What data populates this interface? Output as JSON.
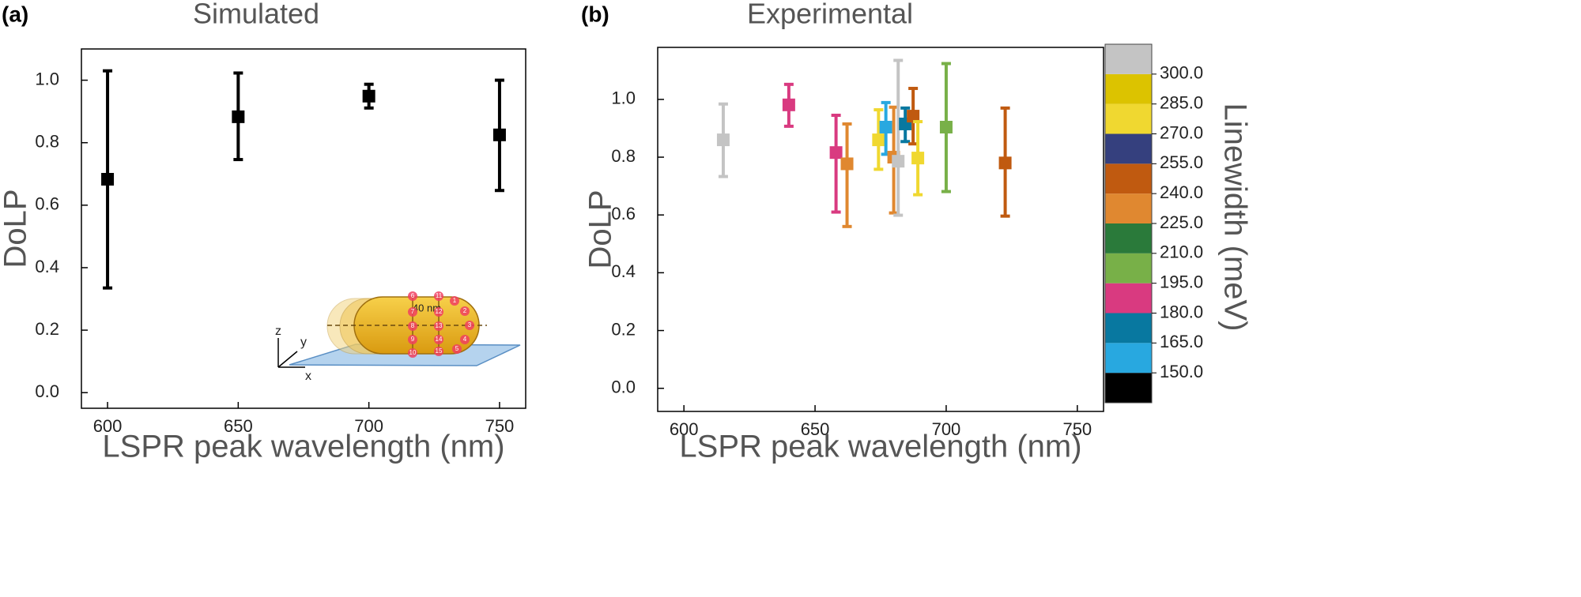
{
  "chart_data": [
    {
      "type": "scatter",
      "panel_label": "(a)",
      "title": "Simulated",
      "xlabel": "LSPR peak wavelength (nm)",
      "ylabel": "DoLP",
      "xlim": [
        590,
        760
      ],
      "ylim": [
        -0.05,
        1.1
      ],
      "xticks": [
        600,
        650,
        700,
        750
      ],
      "yticks": [
        {
          "value": 0,
          "label": "0.0"
        },
        {
          "value": 0.2,
          "label": "0.2"
        },
        {
          "value": 0.4,
          "label": "0.4"
        },
        {
          "value": 0.6,
          "label": "0.6"
        },
        {
          "value": 0.8,
          "label": "0.8"
        },
        {
          "value": 1,
          "label": "1.0"
        }
      ],
      "x": [
        600,
        650,
        700,
        750
      ],
      "values": [
        0.683,
        0.883,
        0.949,
        0.825
      ],
      "low": [
        0.335,
        0.746,
        0.911,
        0.647
      ],
      "high": [
        1.03,
        1.023,
        0.987,
        1.0
      ],
      "color": "#000000",
      "inset": {
        "dimension": "40 nm",
        "axes": [
          "z",
          "y",
          "x"
        ],
        "point_labels": [
          "1",
          "2",
          "3",
          "4",
          "5",
          "6",
          "7",
          "8",
          "9",
          "10",
          "11",
          "12",
          "13",
          "14",
          "15"
        ]
      }
    },
    {
      "type": "scatter",
      "panel_label": "(b)",
      "title": "Experimental",
      "xlabel": "LSPR peak wavelength (nm)",
      "ylabel": "DoLP",
      "xlim": [
        590,
        760
      ],
      "ylim": [
        -0.08,
        1.18
      ],
      "xticks": [
        600,
        650,
        700,
        750
      ],
      "yticks": [
        {
          "value": 0,
          "label": "0.0"
        },
        {
          "value": 0.2,
          "label": "0.2"
        },
        {
          "value": 0.4,
          "label": "0.4"
        },
        {
          "value": 0.6,
          "label": "0.6"
        },
        {
          "value": 0.8,
          "label": "0.8"
        },
        {
          "value": 1,
          "label": "1.0"
        }
      ],
      "x": [
        615,
        640,
        658,
        662.2,
        674.2,
        677,
        680,
        681.7,
        684.4,
        687.4,
        689.2,
        700,
        722.5
      ],
      "values": [
        0.86,
        0.981,
        0.816,
        0.777,
        0.86,
        0.904,
        0.8,
        0.786,
        0.915,
        0.942,
        0.797,
        0.904,
        0.78
      ],
      "low": [
        0.733,
        0.907,
        0.61,
        0.56,
        0.758,
        0.81,
        0.607,
        0.599,
        0.854,
        0.846,
        0.67,
        0.681,
        0.596
      ],
      "high": [
        0.984,
        1.052,
        0.945,
        0.915,
        0.964,
        0.989,
        0.973,
        1.135,
        0.97,
        1.038,
        0.923,
        1.124,
        0.97
      ],
      "colors": [
        "#c4c4c4",
        "#d93a80",
        "#d93a80",
        "#e08830",
        "#f0d830",
        "#28a8e0",
        "#e08830",
        "#c4c4c4",
        "#0878a0",
        "#c05a10",
        "#f0d830",
        "#78b048",
        "#c05a10"
      ],
      "colorbar": {
        "label": "Linewidth (meV)",
        "lim": [
          135,
          315
        ],
        "bounds": [
          135,
          150,
          165,
          180,
          195,
          210,
          225,
          240,
          255,
          270,
          285,
          300,
          315
        ],
        "colors": [
          "#000000",
          "#28a8e0",
          "#0878a0",
          "#d93a80",
          "#78b048",
          "#2a7a3a",
          "#e08830",
          "#c05a10",
          "#35407e",
          "#f0d830",
          "#dcc300",
          "#c4c4c4"
        ],
        "ticks": [
          {
            "value": 150,
            "label": "150.0"
          },
          {
            "value": 165,
            "label": "165.0"
          },
          {
            "value": 180,
            "label": "180.0"
          },
          {
            "value": 195,
            "label": "195.0"
          },
          {
            "value": 210,
            "label": "210.0"
          },
          {
            "value": 225,
            "label": "225.0"
          },
          {
            "value": 240,
            "label": "240.0"
          },
          {
            "value": 255,
            "label": "255.0"
          },
          {
            "value": 270,
            "label": "270.0"
          },
          {
            "value": 285,
            "label": "285.0"
          },
          {
            "value": 300,
            "label": "300.0"
          }
        ]
      }
    }
  ]
}
